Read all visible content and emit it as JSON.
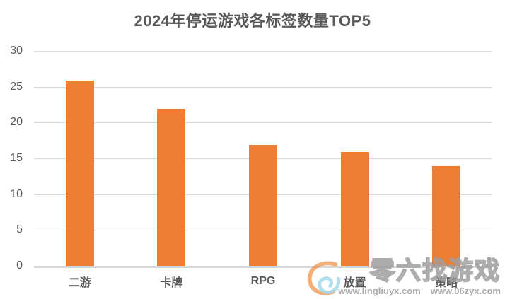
{
  "chart_data": {
    "type": "bar",
    "title": "2024年停运游戏各标签数量TOP5",
    "categories": [
      "二游",
      "卡牌",
      "RPG",
      "放置",
      "策略"
    ],
    "values": [
      26,
      22,
      17,
      16,
      14
    ],
    "xlabel": "",
    "ylabel": "",
    "ylim": [
      0,
      30
    ],
    "ytick_step": 5,
    "yticks": [
      0,
      5,
      10,
      15,
      20,
      25,
      30
    ],
    "grid": true,
    "legend_position": "none",
    "bar_color": "#ED7D31",
    "gridline_color": "#D9D9D9",
    "text_color": "#595959"
  },
  "watermark": {
    "brand": "零六找游戏",
    "urls": [
      "www.lingliuyx.com",
      "www.06zyx.com"
    ],
    "logo_icon": "swirl-icon",
    "logo_colors": {
      "orange": "#ED8A3C",
      "blue": "#8FD0E8"
    }
  }
}
